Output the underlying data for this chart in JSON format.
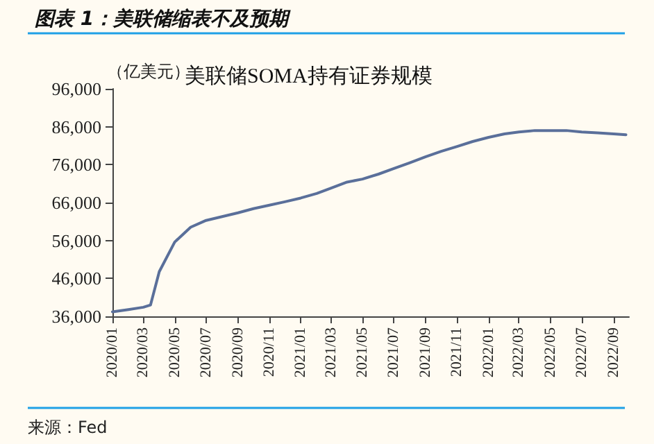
{
  "chart_data": {
    "type": "line",
    "title": "图表 1：美联储缩表不及预期",
    "subtitle": "美联储SOMA持有证券规模",
    "ylabel": "（亿美元）",
    "x": [
      "2020-01",
      "2020-02",
      "2020-03",
      "2020-03-15",
      "2020-04",
      "2020-05",
      "2020-06",
      "2020-07",
      "2020-08",
      "2020-09",
      "2020-10",
      "2020-11",
      "2020-12",
      "2021-01",
      "2021-02",
      "2021-03",
      "2021-04",
      "2021-05",
      "2021-06",
      "2021-07",
      "2021-08",
      "2021-09",
      "2021-10",
      "2021-11",
      "2021-12",
      "2022-01",
      "2022-02",
      "2022-03",
      "2022-04",
      "2022-05",
      "2022-06",
      "2022-07",
      "2022-08",
      "2022-09",
      "2022-09-25"
    ],
    "series": [
      {
        "color": "#5a6f9a",
        "values": [
          37200,
          37800,
          38400,
          39000,
          47800,
          55600,
          59500,
          61300,
          62300,
          63300,
          64400,
          65300,
          66200,
          67200,
          68400,
          69800,
          71400,
          72200,
          73500,
          75000,
          76500,
          78100,
          79500,
          80800,
          82100,
          83200,
          84100,
          84600,
          85000,
          85000,
          85000,
          84600,
          84400,
          84100,
          83900
        ]
      }
    ],
    "xlim": [
      "2020-01",
      "2022-10"
    ],
    "xticks": [
      {
        "value": "2020-01",
        "label": "2020/01"
      },
      {
        "value": "2020-03",
        "label": "2020/03"
      },
      {
        "value": "2020-05",
        "label": "2020/05"
      },
      {
        "value": "2020-07",
        "label": "2020/07"
      },
      {
        "value": "2020-09",
        "label": "2020/09"
      },
      {
        "value": "2020-11",
        "label": "2020/11"
      },
      {
        "value": "2021-01",
        "label": "2021/01"
      },
      {
        "value": "2021-03",
        "label": "2021/03"
      },
      {
        "value": "2021-05",
        "label": "2021/05"
      },
      {
        "value": "2021-07",
        "label": "2021/07"
      },
      {
        "value": "2021-09",
        "label": "2021/09"
      },
      {
        "value": "2021-11",
        "label": "2021/11"
      },
      {
        "value": "2022-01",
        "label": "2022/01"
      },
      {
        "value": "2022-03",
        "label": "2022/03"
      },
      {
        "value": "2022-05",
        "label": "2022/05"
      },
      {
        "value": "2022-07",
        "label": "2022/07"
      },
      {
        "value": "2022-09",
        "label": "2022/09"
      }
    ],
    "ylim": [
      36000,
      96000
    ],
    "yticks": [
      {
        "value": 36000,
        "label": "36,000"
      },
      {
        "value": 46000,
        "label": "46,000"
      },
      {
        "value": 56000,
        "label": "56,000"
      },
      {
        "value": 66000,
        "label": "66,000"
      },
      {
        "value": 76000,
        "label": "76,000"
      },
      {
        "value": 86000,
        "label": "86,000"
      },
      {
        "value": 96000,
        "label": "96,000"
      }
    ],
    "grid": false,
    "marker": "none",
    "line_style": "solid",
    "annotations": [
      "来源：Fed"
    ]
  }
}
